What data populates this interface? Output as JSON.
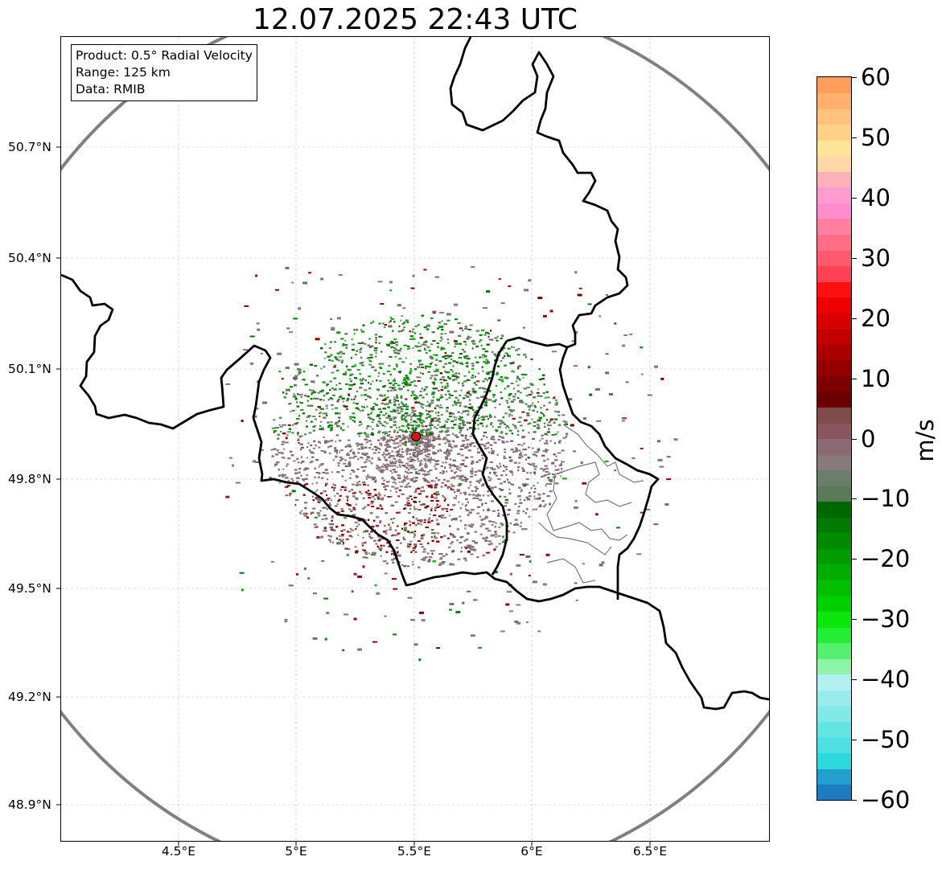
{
  "title": "12.07.2025 22:43 UTC",
  "info": {
    "product": "Product: 0.5° Radial Velocity",
    "range": "Range: 125 km",
    "data": "Data: RMIB"
  },
  "axes": {
    "lat_labels": [
      "50.7°N",
      "50.4°N",
      "50.1°N",
      "49.8°N",
      "49.5°N",
      "49.2°N",
      "48.9°N"
    ],
    "lon_labels": [
      "4.5°E",
      "5°E",
      "5.5°E",
      "6°E",
      "6.5°E"
    ]
  },
  "colorbar": {
    "unit": "m/s",
    "ticks": [
      "60",
      "50",
      "40",
      "30",
      "20",
      "10",
      "0",
      "−10",
      "−20",
      "−30",
      "−40",
      "−50",
      "−60"
    ],
    "colors": [
      "#1f7bc0",
      "#22a0cd",
      "#2dd8dc",
      "#4ddfe1",
      "#65e4e4",
      "#82e8e8",
      "#9aebeb",
      "#b4f0f0",
      "#8ef4aa",
      "#55f070",
      "#22ef33",
      "#0de60d",
      "#00d000",
      "#00be00",
      "#00ad00",
      "#009c00",
      "#008b00",
      "#007a00",
      "#006800",
      "#5a7a5a",
      "#6b7d6b",
      "#877a7a",
      "#8a6a74",
      "#8a5561",
      "#7f4b4b",
      "#6a0000",
      "#7d0000",
      "#940000",
      "#ab0000",
      "#c20000",
      "#d80000",
      "#ee0000",
      "#ff1010",
      "#ff4258",
      "#ff5a6e",
      "#ff6e86",
      "#ff7fa0",
      "#ff8ccd",
      "#ff9bd0",
      "#ffb0b8",
      "#ffd8a8",
      "#ffe59a",
      "#ffd287",
      "#ffc17e",
      "#ffb06e",
      "#ff9e5a"
    ]
  },
  "radar": {
    "site_label_color": "#e01010",
    "ring_color": "#808080"
  }
}
